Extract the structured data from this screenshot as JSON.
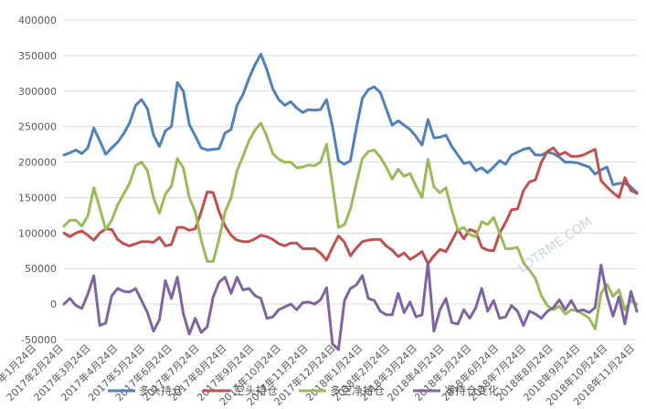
{
  "chart_data": {
    "type": "line",
    "title": "",
    "xlabel": "",
    "ylabel": "",
    "ylim": [
      -50000,
      400000
    ],
    "yticks": [
      -50000,
      0,
      50000,
      100000,
      150000,
      200000,
      250000,
      300000,
      350000,
      400000
    ],
    "grid": "horizontal",
    "legend_position": "bottom",
    "x_tick_labels": [
      "2017年1月24日",
      "2017年2月24日",
      "2017年3月24日",
      "2017年4月24日",
      "2017年5月24日",
      "2017年6月24日",
      "2017年7月24日",
      "2017年8月24日",
      "2017年9月24日",
      "2017年10月24日",
      "2017年11月24日",
      "2017年12月24日",
      "2018年1月24日",
      "2018年2月24日",
      "2018年3月24日",
      "2018年4月24日",
      "2018年5月24日",
      "2018年6月24日",
      "2018年7月24日",
      "2018年8月24日",
      "2018年9月24日",
      "2018年10月24日",
      "2018年11月24日"
    ],
    "series": [
      {
        "name": "多头持仓",
        "color": "#4f81bd",
        "values": [
          210000,
          213000,
          217000,
          212000,
          220000,
          248000,
          230000,
          211000,
          220000,
          228000,
          240000,
          255000,
          280000,
          288000,
          275000,
          238000,
          222000,
          244000,
          250000,
          312000,
          300000,
          253000,
          237000,
          220000,
          217000,
          218000,
          219000,
          241000,
          246000,
          280000,
          295000,
          318000,
          337000,
          352000,
          330000,
          303000,
          288000,
          280000,
          285000,
          276000,
          270000,
          274000,
          273000,
          274000,
          288000,
          250000,
          202000,
          197000,
          202000,
          248000,
          290000,
          302000,
          306000,
          298000,
          275000,
          252000,
          258000,
          252000,
          246000,
          236000,
          224000,
          260000,
          234000,
          235000,
          238000,
          222000,
          210000,
          198000,
          200000,
          188000,
          192000,
          185000,
          193000,
          202000,
          197000,
          210000,
          214000,
          218000,
          220000,
          210000,
          210000,
          214000,
          212000,
          207000,
          200000,
          200000,
          199000,
          196000,
          193000,
          183000,
          189000,
          193000,
          168000,
          170000,
          170000,
          165000,
          157000
        ]
      },
      {
        "name": "空头持仓",
        "color": "#c0504d",
        "values": [
          100000,
          95000,
          100000,
          103000,
          97000,
          90000,
          100000,
          106000,
          105000,
          91000,
          85000,
          82000,
          85000,
          88000,
          88000,
          87000,
          94000,
          82000,
          84000,
          108000,
          108000,
          104000,
          106000,
          130000,
          158000,
          157000,
          130000,
          110000,
          97000,
          90000,
          88000,
          88000,
          92000,
          97000,
          95000,
          91000,
          85000,
          82000,
          86000,
          86000,
          78000,
          78000,
          78000,
          72000,
          62000,
          80000,
          96000,
          87000,
          68000,
          79000,
          88000,
          90000,
          91000,
          91000,
          82000,
          76000,
          67000,
          72000,
          63000,
          68000,
          74000,
          57000,
          68000,
          77000,
          74000,
          89000,
          105000,
          92000,
          105000,
          102000,
          80000,
          76000,
          75000,
          100000,
          115000,
          133000,
          134000,
          160000,
          172000,
          175000,
          200000,
          215000,
          220000,
          210000,
          214000,
          208000,
          208000,
          210000,
          214000,
          218000,
          174000,
          165000,
          157000,
          150000,
          178000,
          160000,
          156000
        ]
      },
      {
        "name": "多空净持仓",
        "color": "#9bbb59",
        "values": [
          110000,
          118000,
          118000,
          110000,
          124000,
          164000,
          135000,
          105000,
          118000,
          140000,
          155000,
          170000,
          195000,
          200000,
          188000,
          150000,
          128000,
          155000,
          166000,
          205000,
          192000,
          150000,
          130000,
          90000,
          60000,
          60000,
          92000,
          130000,
          150000,
          188000,
          208000,
          230000,
          245000,
          255000,
          236000,
          212000,
          204000,
          200000,
          200000,
          192000,
          193000,
          196000,
          195000,
          200000,
          225000,
          168000,
          108000,
          112000,
          134000,
          170000,
          205000,
          215000,
          217000,
          207000,
          193000,
          176000,
          190000,
          180000,
          184000,
          166000,
          150000,
          204000,
          165000,
          157000,
          164000,
          132000,
          104000,
          108000,
          98000,
          95000,
          116000,
          112000,
          122000,
          100000,
          78000,
          78000,
          80000,
          58000,
          48000,
          36000,
          12000,
          -2000,
          -8000,
          -3000,
          -14000,
          -8000,
          -9000,
          -14000,
          -20000,
          -35000,
          15000,
          28000,
          11000,
          20000,
          -8000,
          5000,
          0
        ]
      },
      {
        "name": "净持仓变化:",
        "color": "#8064a2",
        "values": [
          0,
          8000,
          -2000,
          -6000,
          14000,
          40000,
          -30000,
          -27000,
          12000,
          22000,
          18000,
          17000,
          22000,
          5000,
          -12000,
          -38000,
          -22000,
          33000,
          8000,
          38000,
          -13000,
          -42000,
          -20000,
          -40000,
          -32000,
          10000,
          31000,
          38000,
          15000,
          38000,
          20000,
          22000,
          12000,
          8000,
          -20000,
          -18000,
          -8000,
          -4000,
          0,
          -8000,
          2000,
          3000,
          0,
          6000,
          23000,
          -56000,
          -64000,
          5000,
          22000,
          27000,
          40000,
          8000,
          5000,
          -10000,
          -15000,
          -15000,
          15000,
          -12000,
          3000,
          -18000,
          -15000,
          58000,
          -38000,
          -8000,
          8000,
          -26000,
          -28000,
          -8000,
          -20000,
          -5000,
          22000,
          -10000,
          5000,
          -20000,
          -18000,
          -2000,
          -10000,
          -30000,
          -10000,
          -14000,
          -20000,
          -10000,
          -5000,
          6000,
          -8000,
          5000,
          -10000,
          -8000,
          -12000,
          -5000,
          55000,
          12000,
          -17000,
          10000,
          -28000,
          18000,
          -10000
        ]
      }
    ]
  },
  "watermark": "LOTRME.COM"
}
